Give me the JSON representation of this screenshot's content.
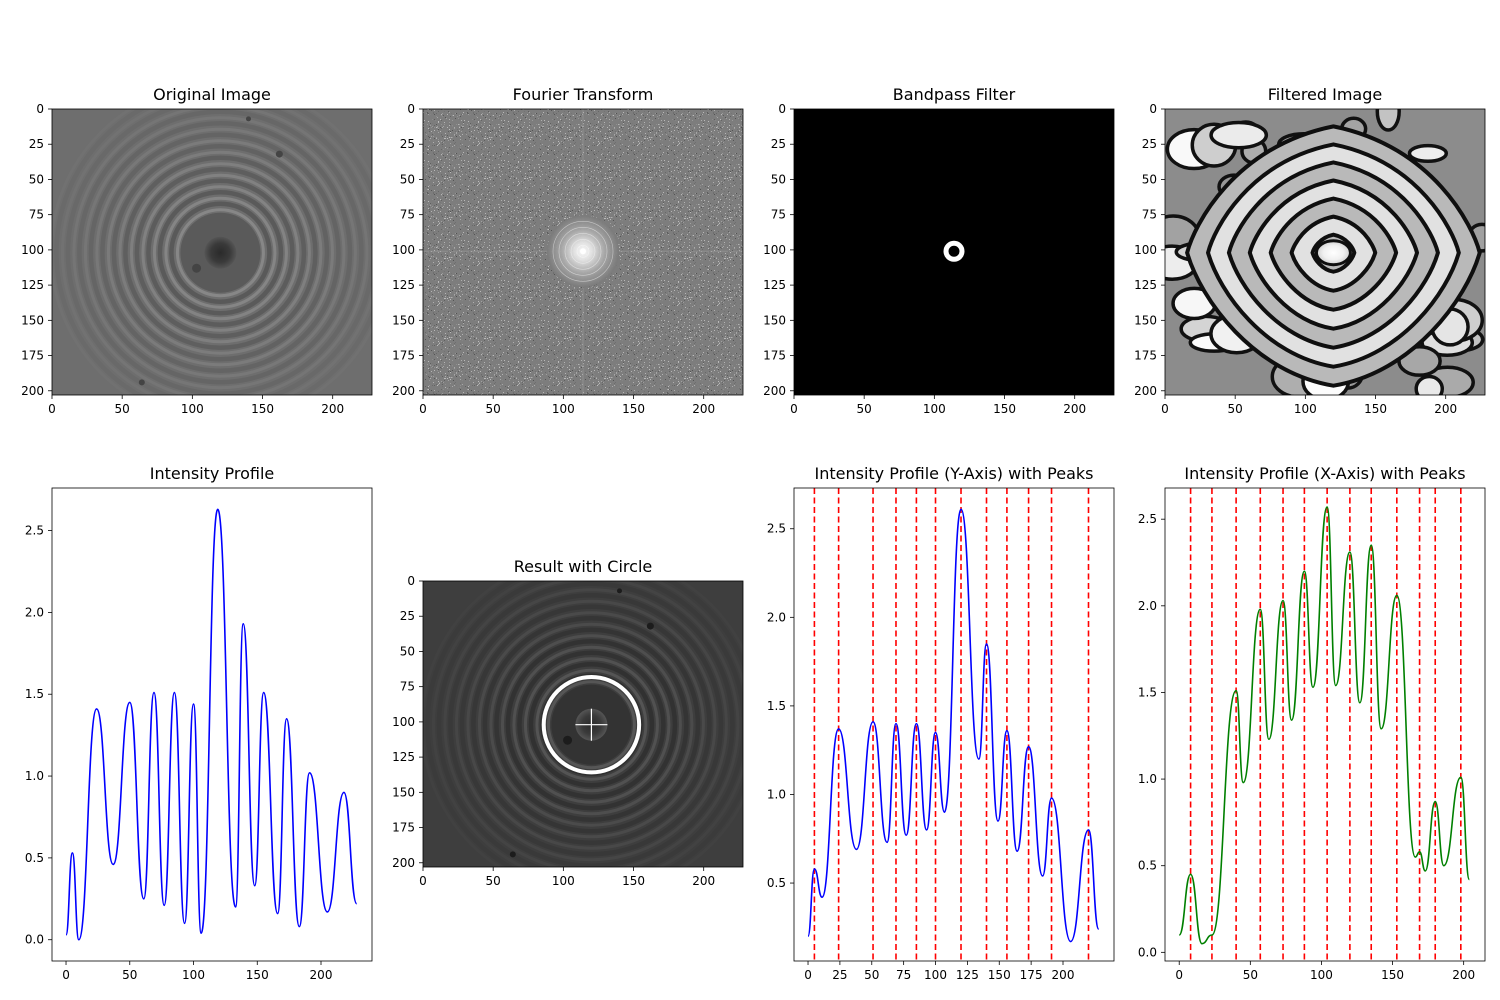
{
  "chart_data": [
    {
      "type": "image",
      "title": "Original Image",
      "image": "grayscale interference rings",
      "xlim": [
        0,
        228
      ],
      "ylim": [
        0,
        203
      ],
      "xticks": [
        0,
        50,
        100,
        150,
        200
      ],
      "yticks": [
        0,
        25,
        50,
        75,
        100,
        125,
        150,
        175,
        200
      ],
      "ring_center": [
        120,
        102
      ]
    },
    {
      "type": "image",
      "title": "Fourier Transform",
      "image": "grayscale fourier magnitude",
      "xlim": [
        0,
        228
      ],
      "ylim": [
        0,
        203
      ],
      "xticks": [
        0,
        50,
        100,
        150,
        200
      ],
      "yticks": [
        0,
        25,
        50,
        75,
        100,
        125,
        150,
        175,
        200
      ],
      "bright_center": [
        114,
        101
      ]
    },
    {
      "type": "image",
      "title": "Bandpass Filter",
      "image": "black mask with white ring",
      "xlim": [
        0,
        228
      ],
      "ylim": [
        0,
        203
      ],
      "xticks": [
        0,
        50,
        100,
        150,
        200
      ],
      "yticks": [
        0,
        25,
        50,
        75,
        100,
        125,
        150,
        175,
        200
      ],
      "ring_center": [
        114,
        101
      ]
    },
    {
      "type": "image",
      "title": "Filtered Image",
      "image": "grayscale filtered contour pattern",
      "xlim": [
        0,
        228
      ],
      "ylim": [
        0,
        203
      ],
      "xticks": [
        0,
        50,
        100,
        150,
        200
      ],
      "yticks": [
        0,
        25,
        50,
        75,
        100,
        125,
        150,
        175,
        200
      ],
      "ring_center": [
        120,
        102
      ]
    },
    {
      "type": "line",
      "title": "Intensity Profile",
      "xlim": [
        -11,
        240
      ],
      "ylim": [
        -0.13,
        2.76
      ],
      "xticks": [
        0,
        50,
        100,
        150,
        200
      ],
      "yticks": [
        0.0,
        0.5,
        1.0,
        1.5,
        2.0,
        2.5
      ],
      "ytick_labels": [
        "0.0",
        "0.5",
        "1.0",
        "1.5",
        "2.0",
        "2.5"
      ],
      "series": [
        {
          "color": "#0000ff",
          "x": [
            0,
            5,
            10,
            24,
            37,
            50,
            61,
            69,
            77,
            85,
            93,
            100,
            106,
            119,
            133,
            139,
            148,
            155,
            166,
            173,
            183,
            191,
            205,
            218,
            228
          ],
          "y": [
            0.03,
            0.53,
            0.0,
            1.41,
            0.46,
            1.45,
            0.25,
            1.51,
            0.21,
            1.51,
            0.1,
            1.44,
            0.04,
            2.63,
            0.2,
            1.93,
            0.33,
            1.51,
            0.16,
            1.35,
            0.08,
            1.02,
            0.17,
            0.9,
            0.22
          ]
        }
      ]
    },
    {
      "type": "image",
      "title": "Result with Circle",
      "image": "grayscale rings with detected circle overlay",
      "xlim": [
        0,
        228
      ],
      "ylim": [
        0,
        203
      ],
      "xticks": [
        0,
        50,
        100,
        150,
        200
      ],
      "yticks": [
        0,
        25,
        50,
        75,
        100,
        125,
        150,
        175,
        200
      ],
      "circle_center": [
        120,
        102
      ],
      "circle_radius": 34
    },
    {
      "type": "line",
      "title": "Intensity Profile (Y-Axis) with Peaks",
      "xlim": [
        -11,
        240
      ],
      "ylim": [
        0.06,
        2.73
      ],
      "xticks": [
        0,
        25,
        50,
        75,
        100,
        125,
        150,
        175,
        200
      ],
      "yticks": [
        0.5,
        1.0,
        1.5,
        2.0,
        2.5
      ],
      "ytick_labels": [
        "0.5",
        "1.0",
        "1.5",
        "2.0",
        "2.5"
      ],
      "peaks_x": [
        5,
        24,
        51,
        69,
        85,
        100,
        120,
        140,
        156,
        173,
        191,
        220
      ],
      "series": [
        {
          "color": "#0000ff",
          "x": [
            0,
            5,
            11,
            24,
            38,
            51,
            62,
            69,
            77,
            85,
            93,
            100,
            107,
            120,
            134,
            140,
            149,
            156,
            164,
            173,
            184,
            191,
            206,
            220,
            228
          ],
          "y": [
            0.2,
            0.58,
            0.42,
            1.37,
            0.69,
            1.41,
            0.73,
            1.4,
            0.77,
            1.4,
            0.8,
            1.35,
            0.9,
            2.61,
            1.2,
            1.85,
            0.85,
            1.36,
            0.68,
            1.27,
            0.54,
            0.98,
            0.17,
            0.8,
            0.24
          ]
        }
      ]
    },
    {
      "type": "line",
      "title": "Intensity Profile (X-Axis) with Peaks",
      "xlim": [
        -10,
        215
      ],
      "ylim": [
        -0.05,
        2.68
      ],
      "xticks": [
        0,
        50,
        100,
        150,
        200
      ],
      "yticks": [
        0.0,
        0.5,
        1.0,
        1.5,
        2.0,
        2.5
      ],
      "ytick_labels": [
        "0.0",
        "0.5",
        "1.0",
        "1.5",
        "2.0",
        "2.5"
      ],
      "peaks_x": [
        8,
        23,
        40,
        57,
        73,
        88,
        104,
        120,
        135,
        153,
        169,
        180,
        198
      ],
      "series": [
        {
          "color": "#008000",
          "x": [
            0,
            8,
            16,
            23,
            40,
            45,
            57,
            63,
            73,
            79,
            88,
            94,
            104,
            110,
            120,
            127,
            135,
            142,
            153,
            166,
            169,
            173,
            180,
            186,
            198,
            204
          ],
          "y": [
            0.1,
            0.45,
            0.05,
            0.1,
            1.51,
            0.98,
            1.98,
            1.23,
            2.03,
            1.34,
            2.2,
            1.53,
            2.57,
            1.54,
            2.31,
            1.44,
            2.35,
            1.29,
            2.06,
            0.55,
            0.58,
            0.47,
            0.87,
            0.5,
            1.01,
            0.42
          ]
        }
      ]
    }
  ]
}
